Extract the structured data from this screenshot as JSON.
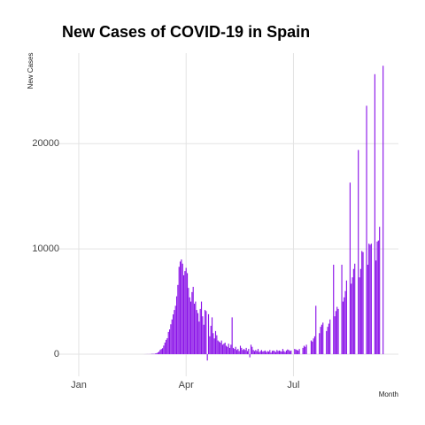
{
  "chart_data": {
    "type": "bar",
    "title": "New Cases of COVID-19 in Spain",
    "x_label": "Month",
    "y_label": "New Cases",
    "color": "#8a12e8",
    "grid": true,
    "xlim": [
      -18,
      271
    ],
    "xticks": [
      {
        "value": 0,
        "label": "Jan"
      },
      {
        "value": 91,
        "label": "Apr"
      },
      {
        "value": 182,
        "label": "Jul"
      }
    ],
    "ylim": [
      -2100,
      28600
    ],
    "yticks": [
      0,
      10000,
      20000
    ],
    "x": [
      50,
      51,
      52,
      53,
      54,
      55,
      56,
      57,
      58,
      59,
      60,
      61,
      62,
      63,
      64,
      65,
      66,
      67,
      68,
      69,
      70,
      71,
      72,
      73,
      74,
      75,
      76,
      77,
      78,
      79,
      80,
      81,
      82,
      83,
      84,
      85,
      86,
      87,
      88,
      89,
      90,
      91,
      92,
      93,
      94,
      95,
      96,
      97,
      98,
      99,
      100,
      101,
      102,
      103,
      104,
      105,
      106,
      107,
      108,
      109,
      110,
      111,
      112,
      113,
      114,
      115,
      116,
      117,
      118,
      119,
      120,
      121,
      122,
      123,
      124,
      125,
      126,
      127,
      128,
      129,
      130,
      131,
      132,
      133,
      134,
      135,
      136,
      137,
      138,
      139,
      140,
      141,
      142,
      143,
      144,
      145,
      146,
      147,
      148,
      149,
      150,
      151,
      152,
      153,
      154,
      155,
      156,
      157,
      158,
      159,
      160,
      161,
      162,
      163,
      164,
      165,
      166,
      167,
      168,
      169,
      170,
      171,
      172,
      173,
      174,
      175,
      176,
      177,
      178,
      179,
      180,
      181,
      182,
      183,
      184,
      185,
      186,
      187,
      188,
      189,
      190,
      191,
      192,
      193,
      194,
      195,
      196,
      197,
      198,
      199,
      200,
      201,
      202,
      203,
      204,
      205,
      206,
      207,
      208,
      209,
      210,
      211,
      212,
      213,
      214,
      215,
      216,
      217,
      218,
      219,
      220,
      221,
      222,
      223,
      224,
      225,
      226,
      227,
      228,
      229,
      230,
      231,
      232,
      233,
      234,
      235,
      236,
      237,
      238,
      239,
      240,
      241,
      242,
      243,
      244,
      245,
      246,
      247,
      248,
      249,
      250,
      251,
      252,
      253,
      254,
      255,
      256,
      257,
      258
    ],
    "values": [
      0,
      0,
      0,
      0,
      0,
      1,
      4,
      7,
      11,
      8,
      13,
      14,
      33,
      36,
      35,
      60,
      91,
      168,
      245,
      407,
      491,
      566,
      817,
      1107,
      1360,
      1522,
      2115,
      2354,
      2840,
      3300,
      3780,
      4200,
      4600,
      5500,
      6580,
      8300,
      8800,
      9000,
      8600,
      7500,
      7900,
      8200,
      7700,
      6300,
      5400,
      5000,
      5900,
      6400,
      4800,
      5000,
      4200,
      3900,
      3100,
      4300,
      5000,
      3600,
      2800,
      4200,
      4100,
      -600,
      3800,
      1700,
      2700,
      3500,
      2000,
      1500,
      2200,
      1800,
      1300,
      1200,
      1100,
      1300,
      900,
      1000,
      1100,
      800,
      700,
      1000,
      600,
      900,
      3500,
      600,
      500,
      700,
      400,
      500,
      300,
      800,
      600,
      400,
      500,
      400,
      600,
      300,
      500,
      -300,
      900,
      700,
      400,
      300,
      400,
      300,
      500,
      200,
      300,
      400,
      250,
      300,
      350,
      200,
      300,
      250,
      400,
      150,
      320,
      350,
      300,
      200,
      400,
      300,
      350,
      300,
      250,
      500,
      300,
      200,
      350,
      450,
      400,
      300,
      350,
      0,
      0,
      500,
      450,
      400,
      350,
      500,
      0,
      0,
      600,
      800,
      700,
      900,
      0,
      0,
      0,
      1300,
      1200,
      1500,
      1700,
      4600,
      0,
      0,
      2000,
      2600,
      2800,
      3000,
      0,
      0,
      2200,
      2600,
      2900,
      3300,
      0,
      0,
      8500,
      3600,
      4100,
      4500,
      4300,
      0,
      0,
      8500,
      5000,
      5400,
      6000,
      7000,
      0,
      0,
      16300,
      6700,
      7300,
      8100,
      8600,
      0,
      0,
      19400,
      7300,
      8100,
      9800,
      9700,
      0,
      0,
      23600,
      8500,
      10500,
      10400,
      10500,
      0,
      0,
      26600,
      8900,
      10700,
      10800,
      12100,
      0,
      0,
      27400
    ]
  }
}
